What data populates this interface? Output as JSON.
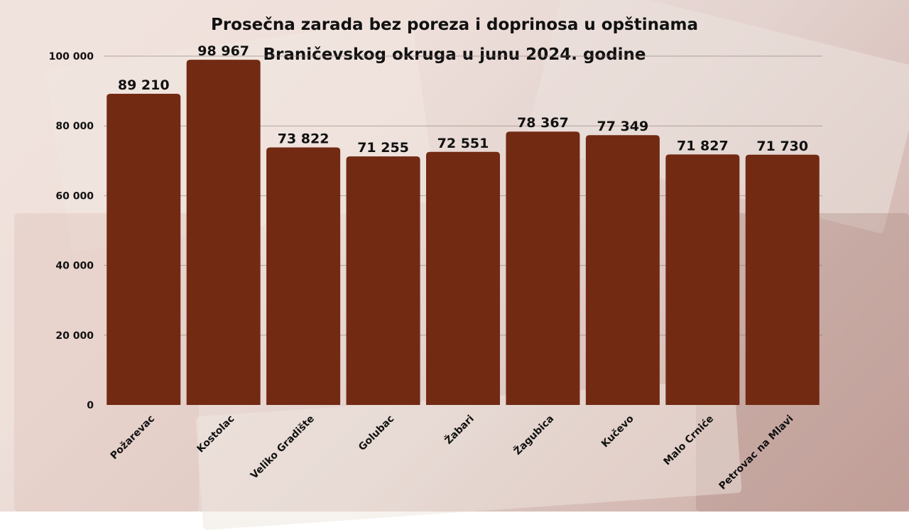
{
  "chart_data": {
    "type": "bar",
    "title_lines": [
      "Prosečna zarada bez poreza i doprinosa u opštinama",
      "Braničevskog okruga u junu 2024. godine"
    ],
    "categories": [
      "Požarevac",
      "Kostolac",
      "Veliko Gradište",
      "Golubac",
      "Žabari",
      "Žagubica",
      "Kučevo",
      "Malo Crniće",
      "Petrovac na Mlavi"
    ],
    "values": [
      89210,
      98967,
      73822,
      71255,
      72551,
      78367,
      77349,
      71827,
      71730
    ],
    "value_labels": [
      "89 210",
      "98 967",
      "73 822",
      "71 255",
      "72 551",
      "78 367",
      "77 349",
      "71 827",
      "71 730"
    ],
    "yticks": [
      0,
      20000,
      40000,
      60000,
      80000,
      100000
    ],
    "ytick_labels": [
      "0",
      "20 000",
      "40 000",
      "60 000",
      "80 000",
      "100 000"
    ],
    "ylim": [
      0,
      100000
    ],
    "xlabel": "",
    "ylabel": "",
    "grid": true,
    "bar_color": "#722a13",
    "grid_color": "#8a7a72"
  }
}
